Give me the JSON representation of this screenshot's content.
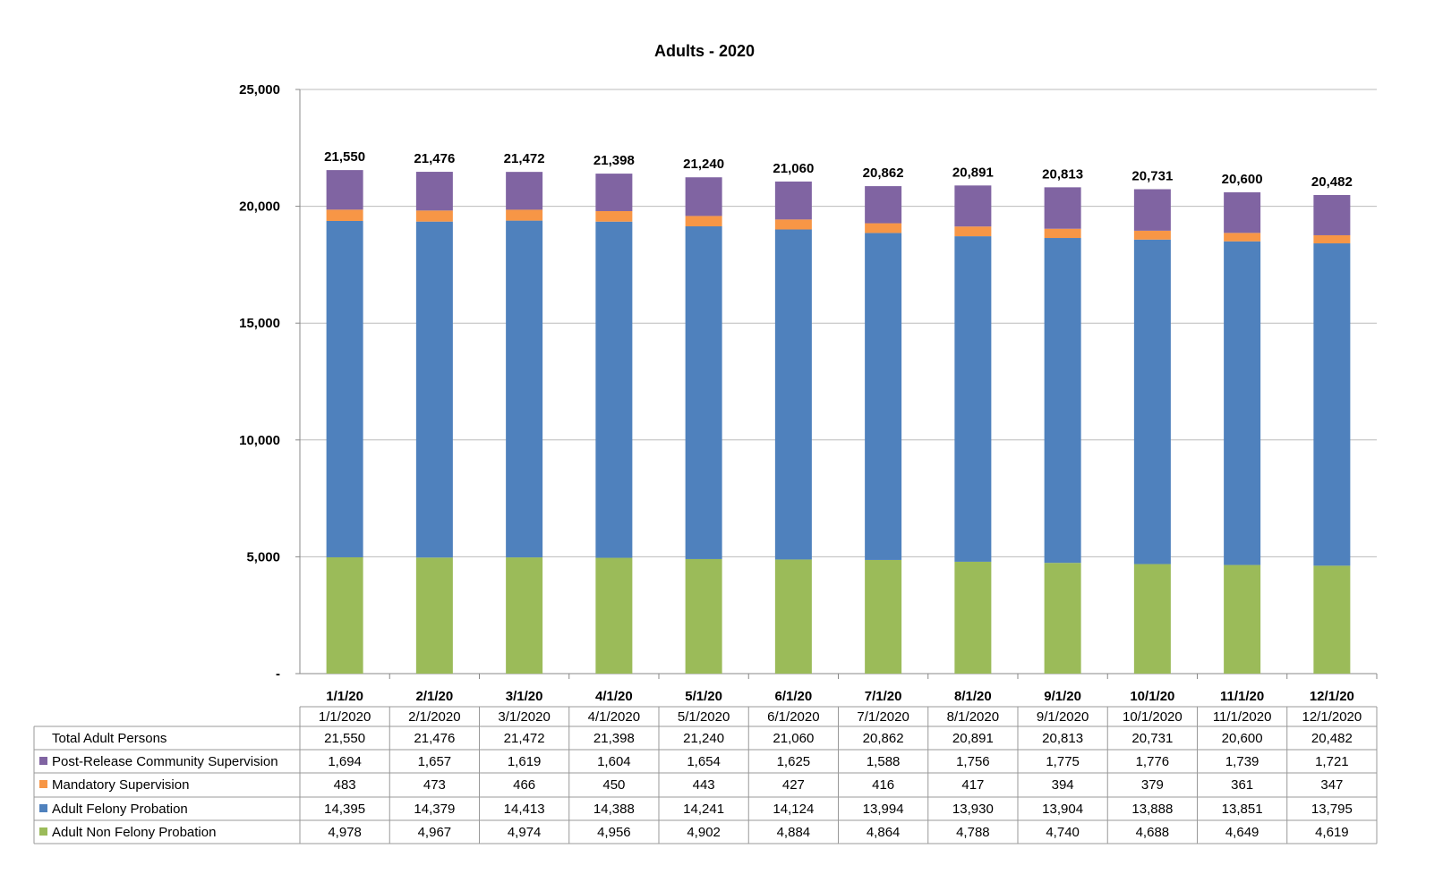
{
  "chart_data": {
    "type": "bar",
    "stacked": true,
    "title": "Adults - 2020",
    "ylim": [
      0,
      25000
    ],
    "yticks": [
      0,
      5000,
      10000,
      15000,
      20000,
      25000
    ],
    "ytick_labels": [
      "-",
      "5,000",
      "10,000",
      "15,000",
      "20,000",
      "25,000"
    ],
    "grid": true,
    "categories": [
      "1/1/20",
      "2/1/20",
      "3/1/20",
      "4/1/20",
      "5/1/20",
      "6/1/20",
      "7/1/20",
      "8/1/20",
      "9/1/20",
      "10/1/20",
      "11/1/20",
      "12/1/20"
    ],
    "table_dates": [
      "1/1/2020",
      "2/1/2020",
      "3/1/2020",
      "4/1/2020",
      "5/1/2020",
      "6/1/2020",
      "7/1/2020",
      "8/1/2020",
      "9/1/2020",
      "10/1/2020",
      "11/1/2020",
      "12/1/2020"
    ],
    "totals": {
      "name": "Total Adult Persons",
      "values": [
        21550,
        21476,
        21472,
        21398,
        21240,
        21060,
        20862,
        20891,
        20813,
        20731,
        20600,
        20482
      ],
      "labels": [
        "21,550",
        "21,476",
        "21,472",
        "21,398",
        "21,240",
        "21,060",
        "20,862",
        "20,891",
        "20,813",
        "20,731",
        "20,600",
        "20,482"
      ]
    },
    "series": [
      {
        "name": "Post-Release Community Supervision",
        "color": "#8064A2",
        "values": [
          1694,
          1657,
          1619,
          1604,
          1654,
          1625,
          1588,
          1756,
          1775,
          1776,
          1739,
          1721
        ],
        "labels": [
          "1,694",
          "1,657",
          "1,619",
          "1,604",
          "1,654",
          "1,625",
          "1,588",
          "1,756",
          "1,775",
          "1,776",
          "1,739",
          "1,721"
        ]
      },
      {
        "name": "Mandatory Supervision",
        "color": "#F79646",
        "values": [
          483,
          473,
          466,
          450,
          443,
          427,
          416,
          417,
          394,
          379,
          361,
          347
        ],
        "labels": [
          "483",
          "473",
          "466",
          "450",
          "443",
          "427",
          "416",
          "417",
          "394",
          "379",
          "361",
          "347"
        ]
      },
      {
        "name": "Adult Felony Probation",
        "color": "#4F81BD",
        "values": [
          14395,
          14379,
          14413,
          14388,
          14241,
          14124,
          13994,
          13930,
          13904,
          13888,
          13851,
          13795
        ],
        "labels": [
          "14,395",
          "14,379",
          "14,413",
          "14,388",
          "14,241",
          "14,124",
          "13,994",
          "13,930",
          "13,904",
          "13,888",
          "13,851",
          "13,795"
        ]
      },
      {
        "name": "Adult Non Felony Probation",
        "color": "#9BBB59",
        "values": [
          4978,
          4967,
          4974,
          4956,
          4902,
          4884,
          4864,
          4788,
          4740,
          4688,
          4649,
          4619
        ],
        "labels": [
          "4,978",
          "4,967",
          "4,974",
          "4,956",
          "4,902",
          "4,884",
          "4,864",
          "4,788",
          "4,740",
          "4,688",
          "4,649",
          "4,619"
        ]
      }
    ]
  }
}
